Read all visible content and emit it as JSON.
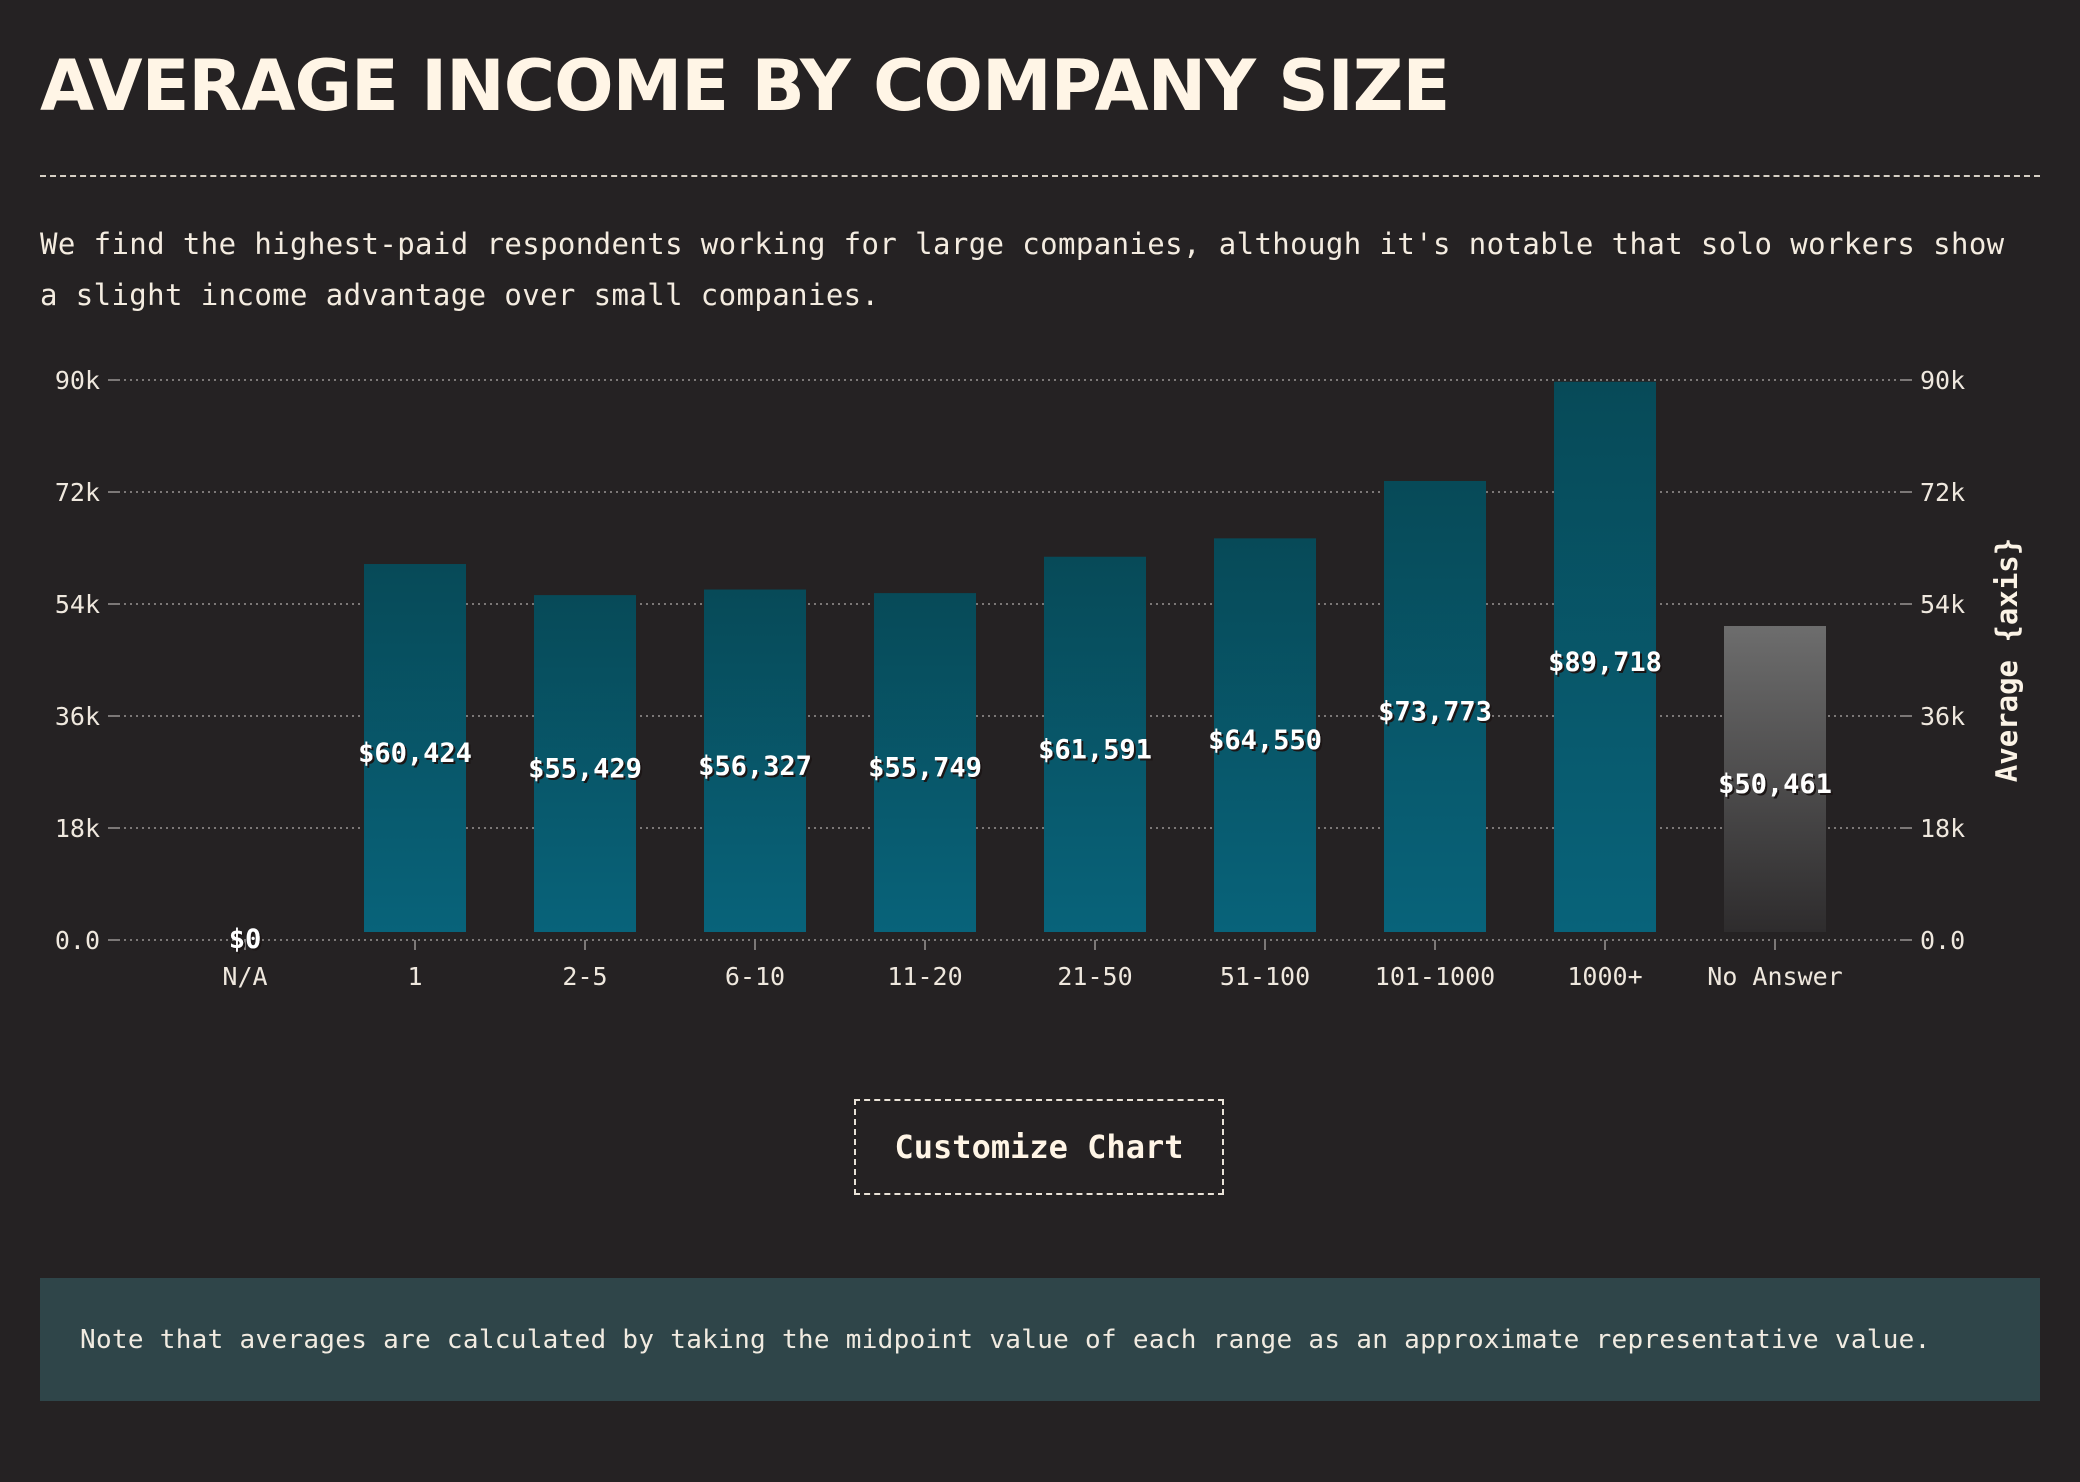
{
  "page": {
    "title": "AVERAGE INCOME BY COMPANY SIZE",
    "intro": "We find the highest-paid respondents working for large companies, although it's notable that solo workers show a slight income advantage over small companies.",
    "customize_button": "Customize Chart",
    "note": "Note that averages are calculated by taking the midpoint value of each range as an approximate representative value."
  },
  "chart_data": {
    "type": "bar",
    "title": "",
    "xlabel": "",
    "ylabel": "Average {axis}",
    "ylim": [
      0,
      90000
    ],
    "grid": true,
    "y_ticks": [
      0,
      18000,
      36000,
      54000,
      72000,
      90000
    ],
    "y_tick_labels": [
      "0.0",
      "18k",
      "36k",
      "54k",
      "72k",
      "90k"
    ],
    "categories": [
      "N/A",
      "1",
      "2-5",
      "6-10",
      "11-20",
      "21-50",
      "51-100",
      "101-1000",
      "1000+",
      "No Answer"
    ],
    "values": [
      0,
      60424,
      55429,
      56327,
      55749,
      61591,
      64550,
      73773,
      89718,
      50461
    ],
    "value_labels": [
      "$0",
      "$60,424",
      "$55,429",
      "$56,327",
      "$55,749",
      "$61,591",
      "$64,550",
      "$73,773",
      "$89,718",
      "$50,461"
    ],
    "colors": {
      "bar_top": "#074a58",
      "bar_bottom": "#08637a",
      "no_answer_top": "#6d6d6d",
      "no_answer_bottom": "#2e2c2d",
      "grid": "#7c7877",
      "tick_text": "#efe8de"
    }
  }
}
